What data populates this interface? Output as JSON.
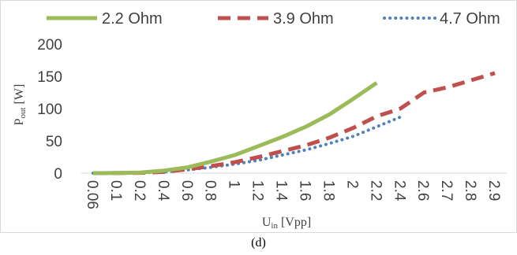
{
  "chart_data": {
    "type": "line",
    "categories": [
      "0.06",
      "0.1",
      "0.2",
      "0.4",
      "0.6",
      "0.8",
      "1",
      "1.2",
      "1.4",
      "1.6",
      "1.8",
      "2",
      "2.2",
      "2.4",
      "2.6",
      "2.7",
      "2.8",
      "2.9"
    ],
    "series": [
      {
        "name": "2.2 Ohm",
        "color": "#9BBB59",
        "dash": "solid",
        "values": [
          0,
          0.2,
          1,
          4,
          9,
          18,
          28,
          42,
          56,
          72,
          91,
          115,
          140,
          null,
          null,
          null,
          null,
          null
        ]
      },
      {
        "name": "3.9 Ohm",
        "color": "#C0504D",
        "dash": "dashed",
        "values": [
          0,
          0.1,
          0.5,
          2,
          6,
          11,
          17,
          25,
          34,
          43,
          55,
          70,
          88,
          100,
          125,
          133,
          144,
          155
        ]
      },
      {
        "name": "4.7 Ohm",
        "color": "#4F81BD",
        "dash": "dotted",
        "values": [
          0,
          0.1,
          0.4,
          2,
          5,
          9,
          14,
          20,
          28,
          36,
          46,
          57,
          72,
          87,
          null,
          null,
          null,
          null
        ]
      }
    ],
    "ylim": [
      0,
      200
    ],
    "yticks": [
      0,
      50,
      100,
      150,
      200
    ],
    "ylabel": {
      "main": "P",
      "sub": "out",
      "unit": " [W]"
    },
    "xlabel": {
      "main": "U",
      "sub": "in",
      "unit": " [Vpp]"
    },
    "grid": false,
    "legend_position": "top"
  },
  "caption": "(d)"
}
